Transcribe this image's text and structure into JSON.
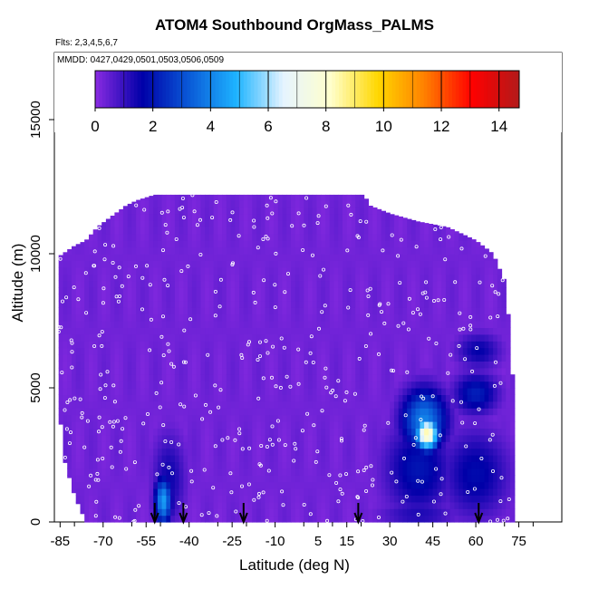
{
  "chart_data": {
    "type": "heatmap",
    "title": "ATOM4 Southbound OrgMass_PALMS",
    "notes": [
      "Flts: 2,3,4,5,6,7",
      "MMDD: 0427,0429,0501,0503,0506,0509"
    ],
    "xlabel": "Latitude (deg N)",
    "ylabel": "Altitude (m)",
    "xlim": [
      -87,
      90
    ],
    "ylim": [
      0,
      17500
    ],
    "x_ticks": [
      -85,
      -70,
      -55,
      -40,
      -25,
      -10,
      5,
      15,
      30,
      45,
      60,
      75
    ],
    "y_ticks": [
      0,
      5000,
      10000,
      15000
    ],
    "colorbar": {
      "range": [
        0,
        14.7
      ],
      "ticks": [
        0,
        2,
        4,
        6,
        8,
        10,
        12,
        14
      ],
      "colors": [
        "#8a2be2",
        "#0000a8",
        "#0a5ad8",
        "#1eb4ff",
        "#e6f4ff",
        "#ffffcc",
        "#ffd700",
        "#ff7f00",
        "#ff0000",
        "#b21a1a"
      ],
      "placement": "top inset"
    },
    "background_value": 0.3,
    "envelope": [
      [
        -85.5,
        4800,
        9900
      ],
      [
        -84,
        2500,
        10000
      ],
      [
        -80,
        1000,
        10300
      ],
      [
        -76,
        0,
        10500
      ],
      [
        -72,
        0,
        11000
      ],
      [
        -67,
        0,
        11400
      ],
      [
        -62,
        0,
        11800
      ],
      [
        -58,
        0,
        12000
      ],
      [
        -52,
        0,
        12200
      ],
      [
        -45,
        0,
        12200
      ],
      [
        -30,
        0,
        12200
      ],
      [
        -10,
        0,
        12200
      ],
      [
        10,
        0,
        12200
      ],
      [
        21,
        0,
        12200
      ],
      [
        23,
        0,
        11800
      ],
      [
        30,
        0,
        11500
      ],
      [
        40,
        0,
        11200
      ],
      [
        50,
        0,
        11000
      ],
      [
        60,
        0,
        10500
      ],
      [
        66,
        0,
        10000
      ],
      [
        70,
        0,
        9000
      ],
      [
        72,
        0,
        7000
      ],
      [
        73,
        0,
        5000
      ]
    ],
    "anomalies": [
      {
        "lat": -49,
        "alt": 800,
        "value": 4.5,
        "dlat": 3,
        "dalt": 900
      },
      {
        "lat": -47,
        "alt": 1600,
        "value": 1.5,
        "dlat": 6,
        "dalt": 1800
      },
      {
        "lat": 43,
        "alt": 3300,
        "value": 8.5,
        "dlat": 4,
        "dalt": 600
      },
      {
        "lat": 42,
        "alt": 3800,
        "value": 4.0,
        "dlat": 8,
        "dalt": 1200
      },
      {
        "lat": 40,
        "alt": 2000,
        "value": 2.0,
        "dlat": 12,
        "dalt": 1800
      },
      {
        "lat": 40,
        "alt": 300,
        "value": 1.3,
        "dlat": 14,
        "dalt": 600
      },
      {
        "lat": 60,
        "alt": 1800,
        "value": 1.8,
        "dlat": 12,
        "dalt": 1700
      },
      {
        "lat": 60,
        "alt": 4800,
        "value": 2.2,
        "dlat": 8,
        "dalt": 800
      },
      {
        "lat": 61,
        "alt": 6400,
        "value": 1.6,
        "dlat": 8,
        "dalt": 700
      }
    ],
    "arrows_lat": [
      -52,
      -42,
      -21,
      19,
      61
    ]
  }
}
